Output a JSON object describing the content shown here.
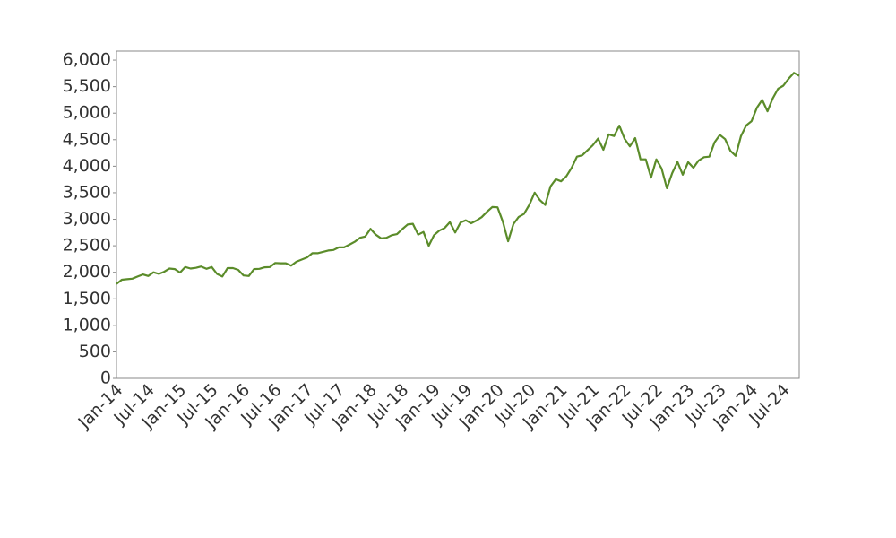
{
  "chart_data": {
    "type": "line",
    "categories": [
      "Jan-14",
      null,
      null,
      null,
      null,
      null,
      "Jul-14",
      null,
      null,
      null,
      null,
      null,
      "Jan-15",
      null,
      null,
      null,
      null,
      null,
      "Jul-15",
      null,
      null,
      null,
      null,
      null,
      "Jan-16",
      null,
      null,
      null,
      null,
      null,
      "Jul-16",
      null,
      null,
      null,
      null,
      null,
      "Jan-17",
      null,
      null,
      null,
      null,
      null,
      "Jul-17",
      null,
      null,
      null,
      null,
      null,
      "Jan-18",
      null,
      null,
      null,
      null,
      null,
      "Jul-18",
      null,
      null,
      null,
      null,
      null,
      "Jan-19",
      null,
      null,
      null,
      null,
      null,
      "Jul-19",
      null,
      null,
      null,
      null,
      null,
      "Jan-20",
      null,
      null,
      null,
      null,
      null,
      "Jul-20",
      null,
      null,
      null,
      null,
      null,
      "Jan-21",
      null,
      null,
      null,
      null,
      null,
      "Jul-21",
      null,
      null,
      null,
      null,
      null,
      "Jan-22",
      null,
      null,
      null,
      null,
      null,
      "Jul-22",
      null,
      null,
      null,
      null,
      null,
      "Jan-23",
      null,
      null,
      null,
      null,
      null,
      "Jul-23",
      null,
      null,
      null,
      null,
      null,
      "Jan-24",
      null,
      null,
      null,
      null,
      null,
      "Jul-24",
      null,
      null,
      null
    ],
    "series": [
      {
        "color": "#5b8c2a",
        "values": [
          1780,
          1860,
          1870,
          1880,
          1920,
          1960,
          1930,
          2000,
          1970,
          2010,
          2070,
          2060,
          1995,
          2100,
          2070,
          2085,
          2110,
          2065,
          2100,
          1970,
          1920,
          2080,
          2080,
          2045,
          1940,
          1930,
          2060,
          2065,
          2095,
          2100,
          2175,
          2170,
          2170,
          2125,
          2200,
          2240,
          2280,
          2360,
          2360,
          2385,
          2410,
          2420,
          2470,
          2470,
          2520,
          2575,
          2650,
          2675,
          2820,
          2710,
          2640,
          2650,
          2700,
          2720,
          2815,
          2900,
          2915,
          2710,
          2760,
          2500,
          2700,
          2785,
          2835,
          2945,
          2750,
          2940,
          2980,
          2925,
          2975,
          3040,
          3140,
          3230,
          3225,
          2955,
          2585,
          2910,
          3045,
          3100,
          3270,
          3500,
          3360,
          3270,
          3620,
          3755,
          3715,
          3810,
          3970,
          4180,
          4205,
          4300,
          4395,
          4520,
          4310,
          4600,
          4570,
          4765,
          4515,
          4375,
          4530,
          4130,
          4130,
          3785,
          4130,
          3955,
          3585,
          3870,
          4080,
          3840,
          4075,
          3970,
          4110,
          4170,
          4180,
          4450,
          4590,
          4510,
          4290,
          4195,
          4570,
          4770,
          4850,
          5100,
          5250,
          5035,
          5280,
          5460,
          5520,
          5650,
          5760,
          5705
        ]
      }
    ],
    "ylim": [
      0,
      6170
    ],
    "yticks": [
      0,
      500,
      {
        "value": 1000,
        "label": "1,000"
      },
      {
        "value": 1500,
        "label": "1,500"
      },
      {
        "value": 2000,
        "label": "2,000"
      },
      {
        "value": 2500,
        "label": "2,500"
      },
      {
        "value": 3000,
        "label": "3,000"
      },
      {
        "value": 3500,
        "label": "3,500"
      },
      {
        "value": 4000,
        "label": "4,000"
      },
      {
        "value": 4500,
        "label": "4,500"
      },
      {
        "value": 5000,
        "label": "5,000"
      },
      {
        "value": 5500,
        "label": "5,500"
      },
      {
        "value": 6000,
        "label": "6,000"
      }
    ],
    "grid": false
  }
}
